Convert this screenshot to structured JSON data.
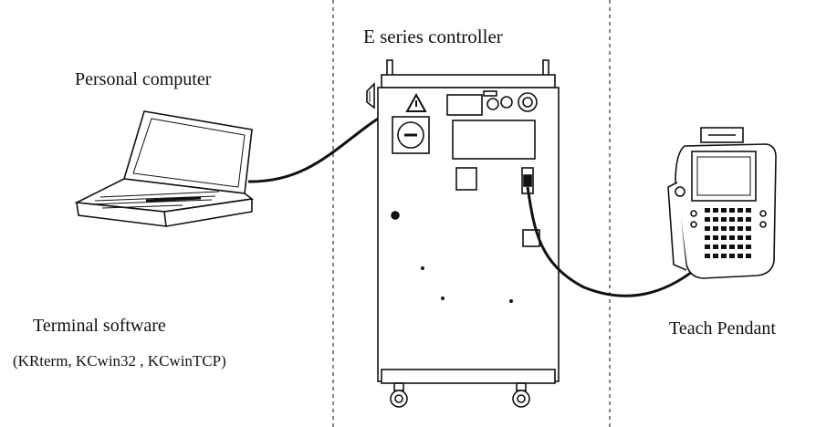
{
  "labels": {
    "controller": "E series controller",
    "pc": "Personal computer",
    "terminal": "Terminal software",
    "terminal_sub": "(KRterm, KCwin32 , KCwinTCP)",
    "pendant": "Teach Pendant"
  },
  "icons": {
    "pc": "laptop-icon",
    "controller": "controller-cabinet-icon",
    "pendant": "teach-pendant-icon",
    "warning": "warning-triangle-icon"
  }
}
